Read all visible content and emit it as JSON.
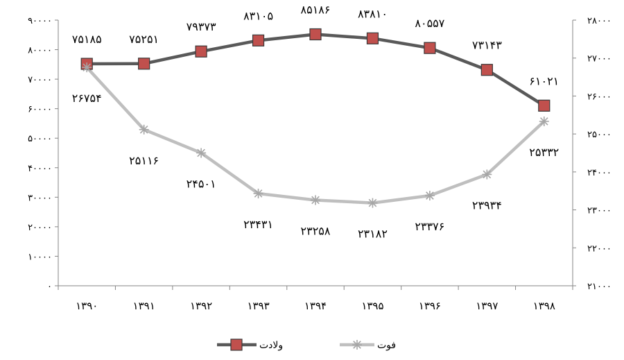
{
  "chart_data": {
    "type": "line",
    "categories": [
      "۱۳۹۰",
      "۱۳۹۱",
      "۱۳۹۲",
      "۱۳۹۳",
      "۱۳۹۴",
      "۱۳۹۵",
      "۱۳۹۶",
      "۱۳۹۷",
      "۱۳۹۸"
    ],
    "left_axis": {
      "ylim": [
        0,
        90000
      ],
      "ticks": [
        0,
        10000,
        20000,
        30000,
        40000,
        50000,
        60000,
        70000,
        80000,
        90000
      ],
      "tick_labels": [
        "۰",
        "۱۰۰۰۰",
        "۲۰۰۰۰",
        "۳۰۰۰۰",
        "۴۰۰۰۰",
        "۵۰۰۰۰",
        "۶۰۰۰۰",
        "۷۰۰۰۰",
        "۸۰۰۰۰",
        "۹۰۰۰۰"
      ]
    },
    "right_axis": {
      "ylim": [
        21000,
        28000
      ],
      "ticks": [
        21000,
        22000,
        23000,
        24000,
        25000,
        26000,
        27000,
        28000
      ],
      "tick_labels": [
        "۲۱۰۰۰",
        "۲۲۰۰۰",
        "۲۳۰۰۰",
        "۲۴۰۰۰",
        "۲۵۰۰۰",
        "۲۶۰۰۰",
        "۲۷۰۰۰",
        "۲۸۰۰۰"
      ]
    },
    "series": [
      {
        "name": "ولادت",
        "axis": "left",
        "color": "#595959",
        "marker": "square",
        "marker_fill": "#c0504d",
        "values": [
          75185,
          75251,
          79373,
          83105,
          85186,
          83810,
          80557,
          73143,
          61021
        ],
        "labels": [
          "۷۵۱۸۵",
          "۷۵۲۵۱",
          "۷۹۳۷۳",
          "۸۳۱۰۵",
          "۸۵۱۸۶",
          "۸۳۸۱۰",
          "۸۰۵۵۷",
          "۷۳۱۴۳",
          "۶۱۰۲۱"
        ]
      },
      {
        "name": "فوت",
        "axis": "right",
        "color": "#bfbfbf",
        "marker": "star",
        "marker_color": "#a6a6a6",
        "values": [
          26754,
          25116,
          24501,
          23431,
          23258,
          23182,
          23376,
          23934,
          25332
        ],
        "labels": [
          "۲۶۷۵۴",
          "۲۵۱۱۶",
          "۲۴۵۰۱",
          "۲۳۴۳۱",
          "۲۳۲۵۸",
          "۲۳۱۸۲",
          "۲۳۳۷۶",
          "۲۳۹۳۴",
          "۲۵۳۳۲"
        ]
      }
    ],
    "grid": false,
    "legend_position": "bottom-center"
  }
}
